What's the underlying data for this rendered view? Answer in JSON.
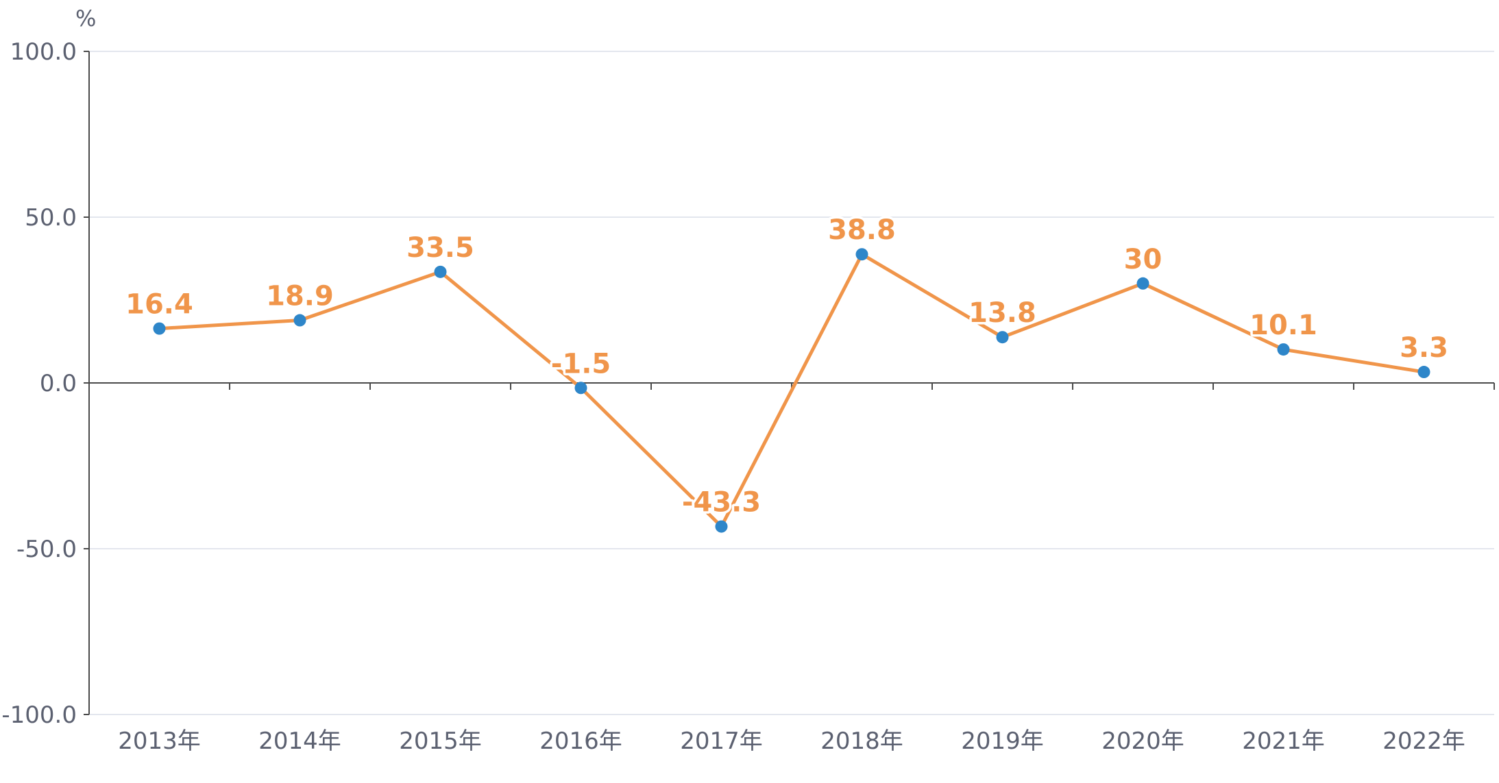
{
  "chart_data": {
    "type": "line",
    "title": "",
    "xlabel": "",
    "ylabel": "",
    "y_unit": "%",
    "categories": [
      "2013年",
      "2014年",
      "2015年",
      "2016年",
      "2017年",
      "2018年",
      "2019年",
      "2020年",
      "2021年",
      "2022年"
    ],
    "series": [
      {
        "values": [
          16.4,
          18.9,
          33.5,
          -1.5,
          -43.3,
          38.8,
          13.8,
          30,
          10.1,
          3.3
        ],
        "labels": [
          "16.4",
          "18.9",
          "33.5",
          "-1.5",
          "-43.3",
          "38.8",
          "13.8",
          "30",
          "10.1",
          "3.3"
        ]
      }
    ],
    "ylim": [
      -100,
      100
    ],
    "yticks": [
      100,
      50,
      0,
      -50,
      -100
    ],
    "ytick_labels": [
      "100.0",
      "50.0",
      "0.0",
      "-50.0",
      "-100.0"
    ],
    "grid": true,
    "legend": "none",
    "colors": {
      "line": "#f0954a",
      "marker": "#2e86c9",
      "grid": "#e3e6ee",
      "axis": "#4a4a4a",
      "text": "#5b6070"
    }
  }
}
